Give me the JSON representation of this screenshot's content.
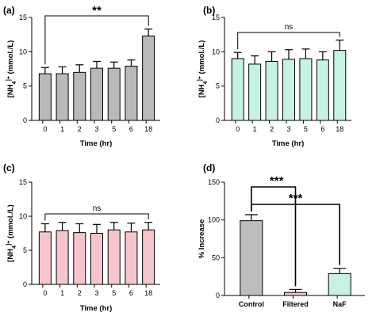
{
  "chart_data": [
    {
      "panel": "(a)",
      "type": "bar",
      "categories": [
        "0",
        "1",
        "2",
        "3",
        "5",
        "6",
        "18"
      ],
      "values": [
        6.8,
        6.8,
        7.0,
        7.6,
        7.6,
        7.9,
        12.3
      ],
      "errors": [
        0.9,
        1.0,
        1.1,
        1.0,
        0.9,
        0.9,
        1.0
      ],
      "color": "#b9b9b9",
      "xlabel": "Time (hr)",
      "ylabel": "[NH4]+ (mmol./L)",
      "ylim": [
        0,
        15
      ],
      "yticks": [
        0,
        5,
        10,
        15
      ],
      "bracket": {
        "from": 0,
        "to": 6,
        "label": "**"
      }
    },
    {
      "panel": "(b)",
      "type": "bar",
      "categories": [
        "0",
        "1",
        "2",
        "3",
        "5",
        "6",
        "18"
      ],
      "values": [
        9.0,
        8.2,
        8.6,
        8.9,
        9.0,
        8.8,
        10.2
      ],
      "errors": [
        0.9,
        1.2,
        1.4,
        1.4,
        1.4,
        1.2,
        1.5
      ],
      "color": "#c6f1e4",
      "xlabel": "Time (hr)",
      "ylabel": "[NH4]+ (mmol./L)",
      "ylim": [
        0,
        15
      ],
      "yticks": [
        0,
        5,
        10,
        15
      ],
      "bracket": {
        "from": 0,
        "to": 6,
        "label": "ns"
      }
    },
    {
      "panel": "(c)",
      "type": "bar",
      "categories": [
        "0",
        "1",
        "2",
        "3",
        "5",
        "6",
        "18"
      ],
      "values": [
        7.7,
        7.9,
        7.6,
        7.5,
        8.0,
        7.7,
        8.0
      ],
      "errors": [
        1.2,
        1.2,
        1.3,
        1.3,
        1.1,
        1.3,
        1.1
      ],
      "color": "#f6c5cc",
      "xlabel": "Time (hr)",
      "ylabel": "[NH4]+ (mmol./L)",
      "ylim": [
        0,
        15
      ],
      "yticks": [
        0,
        5,
        10,
        15
      ],
      "bracket": {
        "from": 0,
        "to": 6,
        "label": "ns"
      }
    },
    {
      "panel": "(d)",
      "type": "bar",
      "categories": [
        "Control",
        "Filtered",
        "NaF"
      ],
      "values": [
        99,
        4,
        29
      ],
      "errors": [
        8,
        4,
        7
      ],
      "colors": [
        "#bdbdbd",
        "#f6c5cc",
        "#c6f1e4"
      ],
      "xlabel": "",
      "ylabel": "% Increase",
      "ylim": [
        0,
        150
      ],
      "yticks": [
        0,
        50,
        100,
        150
      ],
      "brackets": [
        {
          "from": 0,
          "to": 1,
          "label": "***"
        },
        {
          "from": 0,
          "to": 2,
          "label": "***"
        }
      ]
    }
  ]
}
